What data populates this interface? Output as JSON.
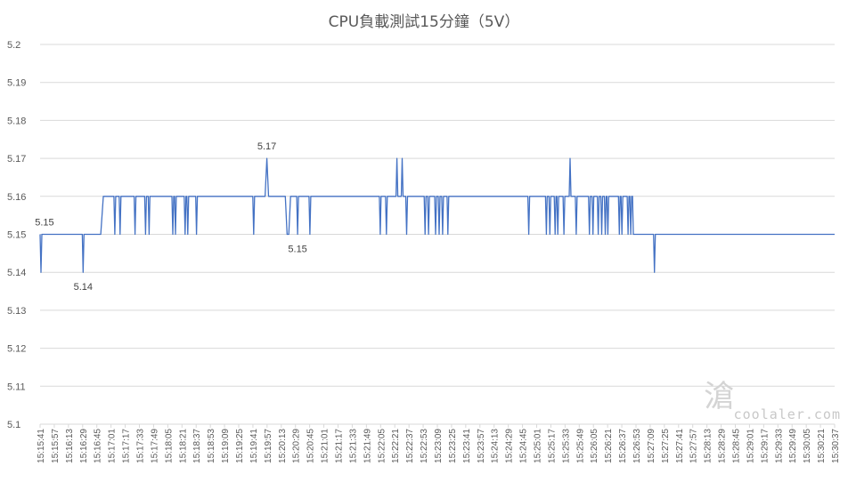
{
  "chart_data": {
    "type": "line",
    "title": "CPU負載測試15分鐘（5V）",
    "xlabel": "",
    "ylabel": "",
    "ylim": [
      5.1,
      5.2
    ],
    "yticks": [
      "5.1",
      "5.11",
      "5.12",
      "5.13",
      "5.14",
      "5.15",
      "5.16",
      "5.17",
      "5.18",
      "5.19",
      "5.2"
    ],
    "grid": true,
    "legend": "none",
    "x_start": "15:15:41",
    "x_end": "15:30:45",
    "x_tick_labels": [
      "15:15:41",
      "15:15:57",
      "15:16:13",
      "15:16:29",
      "15:16:45",
      "15:17:01",
      "15:17:17",
      "15:17:33",
      "15:17:49",
      "15:18:05",
      "15:18:21",
      "15:18:37",
      "15:18:53",
      "15:19:09",
      "15:19:25",
      "15:19:41",
      "15:19:57",
      "15:20:13",
      "15:20:29",
      "15:20:45",
      "15:21:01",
      "15:21:17",
      "15:21:33",
      "15:21:49",
      "15:22:05",
      "15:22:21",
      "15:22:37",
      "15:22:53",
      "15:23:09",
      "15:23:25",
      "15:23:41",
      "15:23:57",
      "15:24:13",
      "15:24:29",
      "15:24:45",
      "15:25:01",
      "15:25:17",
      "15:25:33",
      "15:25:49",
      "15:26:05",
      "15:26:21",
      "15:26:37",
      "15:26:53",
      "15:27:09",
      "15:27:25",
      "15:27:41",
      "15:27:57",
      "15:28:13",
      "15:28:29",
      "15:28:45",
      "15:29:01",
      "15:29:17",
      "15:29:33",
      "15:29:49",
      "15:30:05",
      "15:30:21",
      "15:30:37"
    ],
    "series": [
      {
        "color": "#4472c4",
        "points": [
          [
            "15:15:41",
            5.15
          ],
          [
            "15:15:42",
            5.14
          ],
          [
            "15:15:43",
            5.15
          ],
          [
            "15:16:29",
            5.15
          ],
          [
            "15:16:30",
            5.14
          ],
          [
            "15:16:31",
            5.15
          ],
          [
            "15:16:50",
            5.15
          ],
          [
            "15:16:53",
            5.16
          ],
          [
            "15:17:05",
            5.16
          ],
          [
            "15:17:06",
            5.15
          ],
          [
            "15:17:07",
            5.16
          ],
          [
            "15:17:11",
            5.16
          ],
          [
            "15:17:12",
            5.15
          ],
          [
            "15:17:13",
            5.16
          ],
          [
            "15:17:28",
            5.16
          ],
          [
            "15:17:29",
            5.15
          ],
          [
            "15:17:30",
            5.16
          ],
          [
            "15:17:40",
            5.16
          ],
          [
            "15:17:41",
            5.15
          ],
          [
            "15:17:42",
            5.16
          ],
          [
            "15:17:44",
            5.16
          ],
          [
            "15:17:45",
            5.15
          ],
          [
            "15:17:46",
            5.16
          ],
          [
            "15:18:11",
            5.16
          ],
          [
            "15:18:12",
            5.15
          ],
          [
            "15:18:13",
            5.16
          ],
          [
            "15:18:14",
            5.16
          ],
          [
            "15:18:15",
            5.15
          ],
          [
            "15:18:16",
            5.16
          ],
          [
            "15:18:25",
            5.16
          ],
          [
            "15:18:26",
            5.15
          ],
          [
            "15:18:27",
            5.16
          ],
          [
            "15:18:28",
            5.16
          ],
          [
            "15:18:29",
            5.15
          ],
          [
            "15:18:30",
            5.16
          ],
          [
            "15:18:38",
            5.16
          ],
          [
            "15:18:39",
            5.15
          ],
          [
            "15:18:40",
            5.16
          ],
          [
            "15:19:43",
            5.16
          ],
          [
            "15:19:44",
            5.15
          ],
          [
            "15:19:45",
            5.16
          ],
          [
            "15:19:57",
            5.16
          ],
          [
            "15:19:59",
            5.17
          ],
          [
            "15:20:01",
            5.16
          ],
          [
            "15:20:20",
            5.16
          ],
          [
            "15:20:22",
            5.15
          ],
          [
            "15:20:24",
            5.15
          ],
          [
            "15:20:26",
            5.16
          ],
          [
            "15:20:33",
            5.16
          ],
          [
            "15:20:34",
            5.15
          ],
          [
            "15:20:35",
            5.16
          ],
          [
            "15:20:47",
            5.16
          ],
          [
            "15:20:48",
            5.15
          ],
          [
            "15:20:49",
            5.16
          ],
          [
            "15:22:07",
            5.16
          ],
          [
            "15:22:08",
            5.15
          ],
          [
            "15:22:09",
            5.16
          ],
          [
            "15:22:14",
            5.16
          ],
          [
            "15:22:15",
            5.15
          ],
          [
            "15:22:16",
            5.16
          ],
          [
            "15:22:26",
            5.16
          ],
          [
            "15:22:27",
            5.17
          ],
          [
            "15:22:28",
            5.16
          ],
          [
            "15:22:32",
            5.16
          ],
          [
            "15:22:33",
            5.17
          ],
          [
            "15:22:34",
            5.16
          ],
          [
            "15:22:37",
            5.16
          ],
          [
            "15:22:38",
            5.15
          ],
          [
            "15:22:39",
            5.16
          ],
          [
            "15:22:58",
            5.16
          ],
          [
            "15:22:59",
            5.15
          ],
          [
            "15:23:00",
            5.16
          ],
          [
            "15:23:02",
            5.16
          ],
          [
            "15:23:03",
            5.15
          ],
          [
            "15:23:04",
            5.16
          ],
          [
            "15:23:10",
            5.16
          ],
          [
            "15:23:11",
            5.15
          ],
          [
            "15:23:12",
            5.16
          ],
          [
            "15:23:14",
            5.16
          ],
          [
            "15:23:15",
            5.15
          ],
          [
            "15:23:16",
            5.16
          ],
          [
            "15:23:18",
            5.16
          ],
          [
            "15:23:19",
            5.15
          ],
          [
            "15:23:20",
            5.16
          ],
          [
            "15:23:24",
            5.16
          ],
          [
            "15:23:25",
            5.15
          ],
          [
            "15:23:26",
            5.16
          ],
          [
            "15:24:56",
            5.16
          ],
          [
            "15:24:57",
            5.15
          ],
          [
            "15:24:58",
            5.16
          ],
          [
            "15:25:16",
            5.16
          ],
          [
            "15:25:17",
            5.15
          ],
          [
            "15:25:18",
            5.16
          ],
          [
            "15:25:20",
            5.16
          ],
          [
            "15:25:21",
            5.15
          ],
          [
            "15:25:22",
            5.16
          ],
          [
            "15:25:26",
            5.16
          ],
          [
            "15:25:27",
            5.15
          ],
          [
            "15:25:28",
            5.16
          ],
          [
            "15:25:29",
            5.16
          ],
          [
            "15:25:30",
            5.15
          ],
          [
            "15:25:31",
            5.16
          ],
          [
            "15:25:36",
            5.16
          ],
          [
            "15:25:37",
            5.15
          ],
          [
            "15:25:38",
            5.16
          ],
          [
            "15:25:43",
            5.16
          ],
          [
            "15:25:44",
            5.17
          ],
          [
            "15:25:45",
            5.16
          ],
          [
            "15:25:50",
            5.16
          ],
          [
            "15:25:51",
            5.15
          ],
          [
            "15:25:52",
            5.16
          ],
          [
            "15:26:05",
            5.16
          ],
          [
            "15:26:06",
            5.15
          ],
          [
            "15:26:07",
            5.16
          ],
          [
            "15:26:09",
            5.16
          ],
          [
            "15:26:10",
            5.15
          ],
          [
            "15:26:11",
            5.16
          ],
          [
            "15:26:15",
            5.16
          ],
          [
            "15:26:16",
            5.15
          ],
          [
            "15:26:17",
            5.16
          ],
          [
            "15:26:19",
            5.16
          ],
          [
            "15:26:20",
            5.15
          ],
          [
            "15:26:21",
            5.16
          ],
          [
            "15:26:23",
            5.16
          ],
          [
            "15:26:24",
            5.15
          ],
          [
            "15:26:25",
            5.16
          ],
          [
            "15:26:26",
            5.16
          ],
          [
            "15:26:27",
            5.15
          ],
          [
            "15:26:28",
            5.16
          ],
          [
            "15:26:39",
            5.16
          ],
          [
            "15:26:40",
            5.15
          ],
          [
            "15:26:41",
            5.16
          ],
          [
            "15:26:42",
            5.16
          ],
          [
            "15:26:43",
            5.15
          ],
          [
            "15:26:44",
            5.16
          ],
          [
            "15:26:49",
            5.16
          ],
          [
            "15:26:50",
            5.15
          ],
          [
            "15:26:51",
            5.16
          ],
          [
            "15:26:52",
            5.16
          ],
          [
            "15:26:53",
            5.15
          ],
          [
            "15:26:54",
            5.16
          ],
          [
            "15:26:55",
            5.16
          ],
          [
            "15:26:56",
            5.15
          ],
          [
            "15:27:19",
            5.15
          ],
          [
            "15:27:20",
            5.14
          ],
          [
            "15:27:21",
            5.15
          ],
          [
            "15:30:45",
            5.15
          ]
        ]
      }
    ],
    "annotations": [
      {
        "x": "15:15:46",
        "y": 5.15,
        "text": "5.15",
        "position": "above"
      },
      {
        "x": "15:16:30",
        "y": 5.14,
        "text": "5.14",
        "position": "below"
      },
      {
        "x": "15:19:59",
        "y": 5.17,
        "text": "5.17",
        "position": "above"
      },
      {
        "x": "15:20:34",
        "y": 5.15,
        "text": "5.15",
        "position": "below"
      }
    ]
  },
  "watermark": {
    "mark": "滄",
    "text": "coolaler.com"
  }
}
